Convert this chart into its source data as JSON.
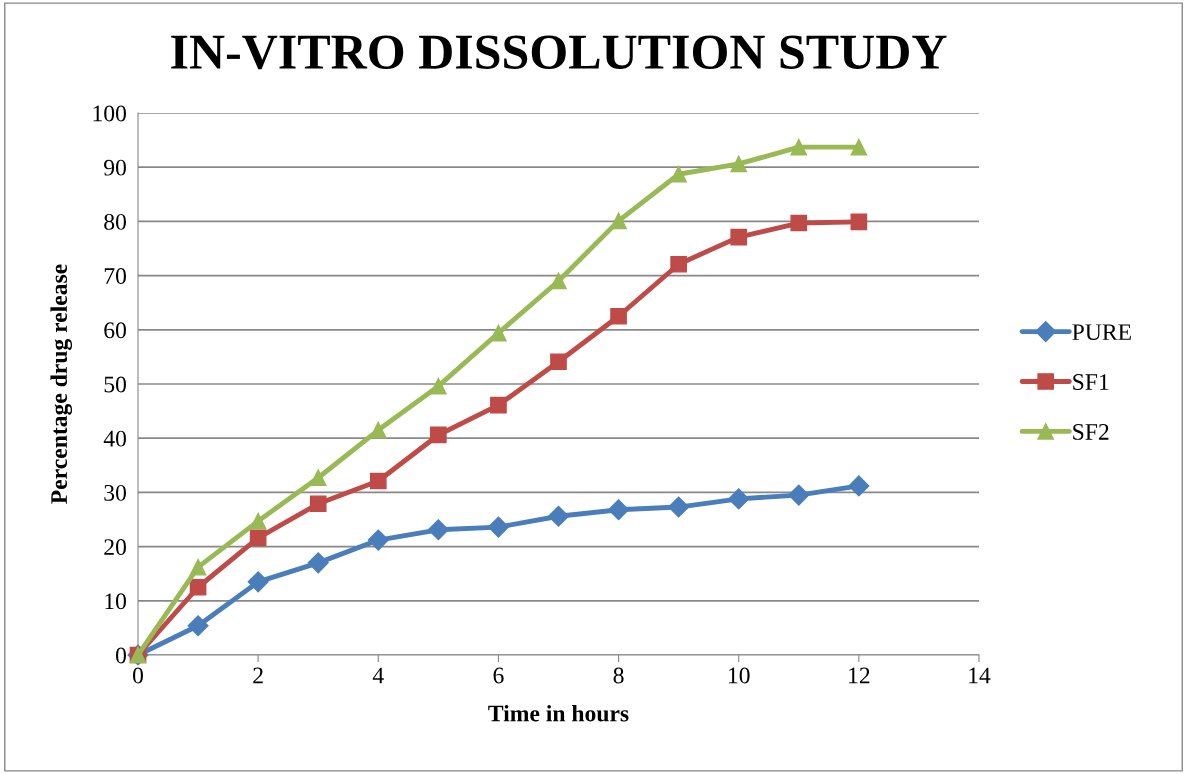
{
  "chart_data": {
    "type": "line",
    "title": "IN-VITRO DISSOLUTION STUDY",
    "xlabel": "Time in hours",
    "ylabel": "Percentage drug release",
    "x": [
      0,
      1,
      2,
      3,
      4,
      5,
      6,
      7,
      8,
      9,
      10,
      11,
      12
    ],
    "series": [
      {
        "name": "PURE",
        "color": "#4a7ebb",
        "marker": "diamond",
        "values": [
          0,
          5.4,
          13.5,
          17.0,
          21.2,
          23.1,
          23.6,
          25.6,
          26.8,
          27.3,
          28.8,
          29.5,
          31.2
        ]
      },
      {
        "name": "SF1",
        "color": "#be4b48",
        "marker": "square",
        "values": [
          0,
          12.5,
          21.6,
          27.9,
          32.1,
          40.6,
          46.1,
          54.1,
          62.5,
          72.1,
          77.1,
          79.7,
          79.9
        ]
      },
      {
        "name": "SF2",
        "color": "#98b954",
        "marker": "triangle",
        "values": [
          0,
          16.2,
          24.7,
          32.7,
          41.5,
          49.6,
          59.4,
          69.0,
          80.1,
          88.7,
          90.6,
          93.7,
          93.7
        ]
      }
    ],
    "xlim": [
      0,
      14
    ],
    "xticks": [
      0,
      2,
      4,
      6,
      8,
      10,
      12,
      14
    ],
    "ylim": [
      0,
      100
    ],
    "yticks": [
      0,
      10,
      20,
      30,
      40,
      50,
      60,
      70,
      80,
      90,
      100
    ],
    "grid": "y",
    "legend": "right",
    "line_style": "solid"
  }
}
